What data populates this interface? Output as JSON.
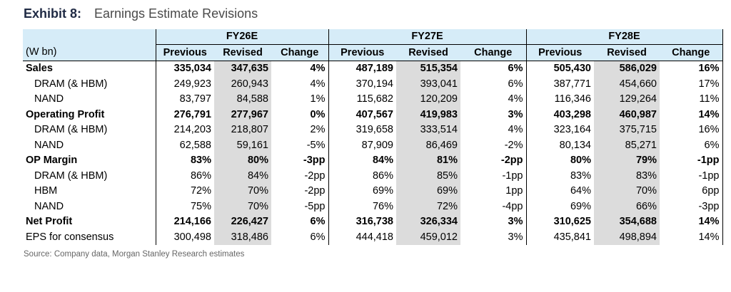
{
  "exhibit": {
    "label": "Exhibit 8:",
    "title": "Earnings Estimate Revisions"
  },
  "table": {
    "unit_label": "(W bn)",
    "groups": [
      "FY26E",
      "FY27E",
      "FY28E"
    ],
    "columns": [
      "Previous",
      "Revised",
      "Change",
      "Previous",
      "Revised",
      "Change",
      "Previous",
      "Revised",
      "Change"
    ],
    "rows": [
      {
        "label": "Sales",
        "bold": true,
        "indent": false,
        "cells": [
          "335,034",
          "347,635",
          "4%",
          "487,189",
          "515,354",
          "6%",
          "505,430",
          "586,029",
          "16%"
        ]
      },
      {
        "label": "DRAM (& HBM)",
        "bold": false,
        "indent": true,
        "cells": [
          "249,923",
          "260,943",
          "4%",
          "370,194",
          "393,041",
          "6%",
          "387,771",
          "454,660",
          "17%"
        ]
      },
      {
        "label": "NAND",
        "bold": false,
        "indent": true,
        "cells": [
          "83,797",
          "84,588",
          "1%",
          "115,682",
          "120,209",
          "4%",
          "116,346",
          "129,264",
          "11%"
        ]
      },
      {
        "label": "Operating Profit",
        "bold": true,
        "indent": false,
        "cells": [
          "276,791",
          "277,967",
          "0%",
          "407,567",
          "419,983",
          "3%",
          "403,298",
          "460,987",
          "14%"
        ]
      },
      {
        "label": "DRAM (& HBM)",
        "bold": false,
        "indent": true,
        "cells": [
          "214,203",
          "218,807",
          "2%",
          "319,658",
          "333,514",
          "4%",
          "323,164",
          "375,715",
          "16%"
        ]
      },
      {
        "label": "NAND",
        "bold": false,
        "indent": true,
        "cells": [
          "62,588",
          "59,161",
          "-5%",
          "87,909",
          "86,469",
          "-2%",
          "80,134",
          "85,271",
          "6%"
        ]
      },
      {
        "label": "OP Margin",
        "bold": true,
        "indent": false,
        "cells": [
          "83%",
          "80%",
          "-3pp",
          "84%",
          "81%",
          "-2pp",
          "80%",
          "79%",
          "-1pp"
        ]
      },
      {
        "label": "DRAM (& HBM)",
        "bold": false,
        "indent": true,
        "cells": [
          "86%",
          "84%",
          "-2pp",
          "86%",
          "85%",
          "-1pp",
          "83%",
          "83%",
          "-1pp"
        ]
      },
      {
        "label": "HBM",
        "bold": false,
        "indent": true,
        "cells": [
          "72%",
          "70%",
          "-2pp",
          "69%",
          "69%",
          "1pp",
          "64%",
          "70%",
          "6pp"
        ]
      },
      {
        "label": "NAND",
        "bold": false,
        "indent": true,
        "cells": [
          "75%",
          "70%",
          "-5pp",
          "76%",
          "72%",
          "-4pp",
          "69%",
          "66%",
          "-3pp"
        ]
      },
      {
        "label": "Net Profit",
        "bold": true,
        "indent": false,
        "cells": [
          "214,166",
          "226,427",
          "6%",
          "316,738",
          "326,334",
          "3%",
          "310,625",
          "354,688",
          "14%"
        ]
      },
      {
        "label": "EPS for consensus",
        "bold": false,
        "indent": false,
        "cells": [
          "300,498",
          "318,486",
          "6%",
          "444,418",
          "459,012",
          "3%",
          "435,841",
          "498,894",
          "14%"
        ]
      }
    ]
  },
  "source": "Source: Company data, Morgan Stanley Research estimates"
}
